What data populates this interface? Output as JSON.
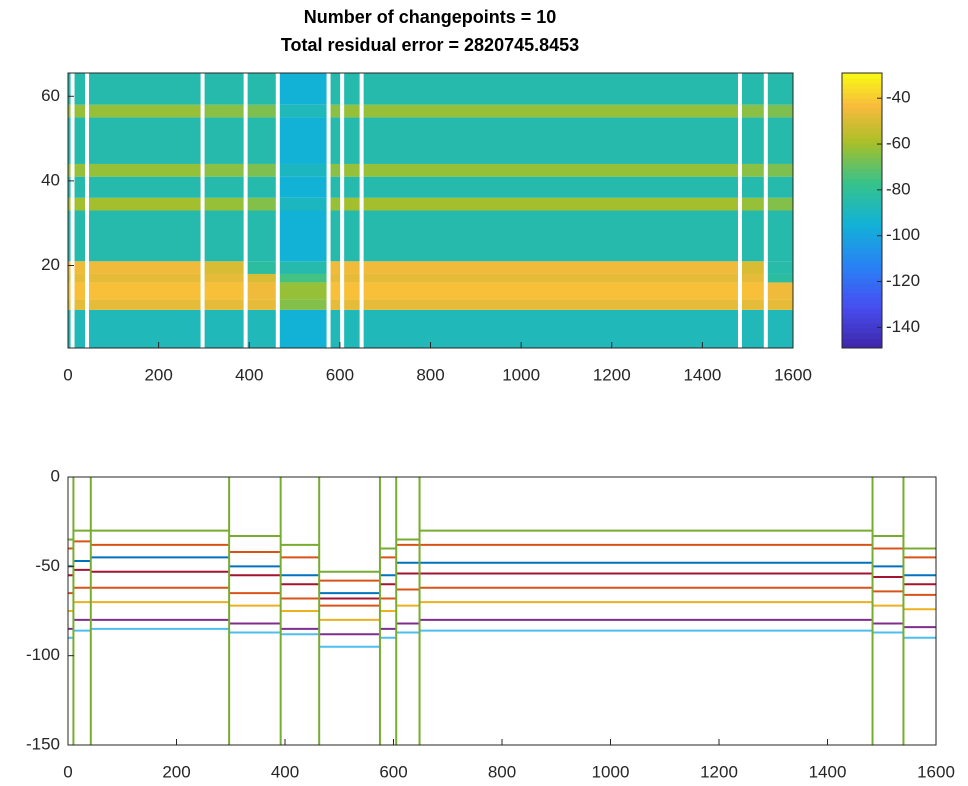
{
  "chart_data": [
    {
      "type": "heatmap",
      "title": "Number of changepoints = 10",
      "subtitle": "Total residual error = 2820745.8453",
      "xlim": [
        0,
        1600
      ],
      "xticks": [
        0,
        200,
        400,
        600,
        800,
        1000,
        1200,
        1400,
        1600
      ],
      "ylim": [
        0.5,
        65.5
      ],
      "yticks": [
        20,
        40,
        60
      ],
      "changepoints": [
        10,
        42,
        297,
        392,
        463,
        575,
        605,
        648,
        1483,
        1540
      ],
      "changepoint_color": "#ffffff",
      "y_edges": [
        0.5,
        9.5,
        12,
        16,
        18,
        21,
        33,
        36,
        41,
        44,
        55,
        58,
        65.5
      ],
      "values": [
        [
          -88,
          -88,
          -88,
          -88,
          -88,
          -95,
          -88,
          -88,
          -88,
          -88,
          -88
        ],
        [
          -47,
          -47,
          -47,
          -47,
          -47,
          -65,
          -47,
          -47,
          -47,
          -47,
          -47
        ],
        [
          -42,
          -42,
          -42,
          -42,
          -45,
          -62,
          -42,
          -42,
          -42,
          -42,
          -45
        ],
        [
          -47,
          -47,
          -47,
          -47,
          -50,
          -75,
          -47,
          -47,
          -47,
          -47,
          -82
        ],
        [
          -45,
          -45,
          -45,
          -50,
          -82,
          -85,
          -45,
          -45,
          -45,
          -50,
          -84
        ],
        [
          -85,
          -85,
          -85,
          -85,
          -85,
          -95,
          -85,
          -85,
          -85,
          -85,
          -85
        ],
        [
          -60,
          -60,
          -60,
          -62,
          -65,
          -90,
          -62,
          -60,
          -60,
          -62,
          -65
        ],
        [
          -85,
          -85,
          -85,
          -85,
          -85,
          -95,
          -85,
          -85,
          -85,
          -85,
          -85
        ],
        [
          -62,
          -62,
          -62,
          -64,
          -66,
          -90,
          -64,
          -62,
          -62,
          -64,
          -66
        ],
        [
          -85,
          -85,
          -85,
          -85,
          -85,
          -95,
          -85,
          -85,
          -85,
          -85,
          -85
        ],
        [
          -62,
          -62,
          -62,
          -64,
          -66,
          -88,
          -64,
          -62,
          -62,
          -64,
          -66
        ],
        [
          -85,
          -85,
          -85,
          -85,
          -85,
          -95,
          -85,
          -85,
          -85,
          -85,
          -85
        ]
      ],
      "clim": [
        -149,
        -29
      ],
      "cticks": [
        -140,
        -120,
        -100,
        -80,
        -60,
        -40
      ]
    },
    {
      "type": "line",
      "xlim": [
        0,
        1600
      ],
      "xticks": [
        0,
        200,
        400,
        600,
        800,
        1000,
        1200,
        1400,
        1600
      ],
      "ylim": [
        -150,
        0
      ],
      "yticks": [
        -150,
        -100,
        -50,
        0
      ],
      "changepoints": [
        10,
        42,
        297,
        392,
        463,
        575,
        605,
        648,
        1483,
        1540
      ],
      "changepoint_color": "#77ac30",
      "series": [
        {
          "color": "#77ac30",
          "values": [
            -35,
            -30,
            -30,
            -33,
            -38,
            -53,
            -40,
            -35,
            -30,
            -33,
            -40
          ]
        },
        {
          "color": "#d95319",
          "values": [
            -40,
            -36,
            -38,
            -42,
            -45,
            -58,
            -45,
            -38,
            -38,
            -40,
            -45
          ]
        },
        {
          "color": "#0072bd",
          "values": [
            -50,
            -47,
            -45,
            -50,
            -55,
            -65,
            -55,
            -48,
            -48,
            -50,
            -55
          ]
        },
        {
          "color": "#a2142f",
          "values": [
            -55,
            -52,
            -53,
            -55,
            -60,
            -68,
            -60,
            -54,
            -54,
            -56,
            -60
          ]
        },
        {
          "color": "#d95319",
          "values": [
            -65,
            -62,
            -62,
            -65,
            -68,
            -72,
            -68,
            -63,
            -62,
            -64,
            -66
          ]
        },
        {
          "color": "#edb120",
          "values": [
            -75,
            -70,
            -70,
            -72,
            -75,
            -80,
            -75,
            -72,
            -70,
            -72,
            -74
          ]
        },
        {
          "color": "#7e2f8e",
          "values": [
            -85,
            -80,
            -80,
            -82,
            -85,
            -88,
            -85,
            -82,
            -80,
            -82,
            -84
          ]
        },
        {
          "color": "#4dbeee",
          "values": [
            -90,
            -86,
            -85,
            -87,
            -88,
            -95,
            -90,
            -87,
            -86,
            -87,
            -90
          ]
        }
      ]
    }
  ]
}
